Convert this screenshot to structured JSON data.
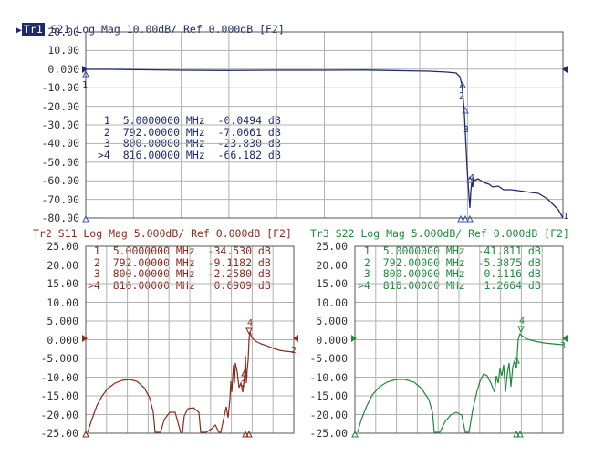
{
  "colors": {
    "trace1": "#1f2a6e",
    "trace2": "#8b2a1c",
    "trace3": "#1d8a3a",
    "grid": "#b0b0b0",
    "marker_blue": "#3a56b0"
  },
  "trace1": {
    "badge": "Tr1",
    "header": " S21 Log Mag 10.00dB/ Ref 0.000dB [F2]",
    "yticks": [
      "20.00",
      "10.00",
      "0.000",
      "-10.00",
      "-20.00",
      "-30.00",
      "-40.00",
      "-50.00",
      "-60.00",
      "-70.00",
      "-80.00"
    ],
    "markers": [
      {
        "n": "1",
        "freq": "5.0000000",
        "unit": "MHz",
        "val": "-0.0494",
        "db": "dB"
      },
      {
        "n": "2",
        "freq": "792.00000",
        "unit": "MHz",
        "val": "-7.0661",
        "db": "dB"
      },
      {
        "n": "3",
        "freq": "800.00000",
        "unit": "MHz",
        "val": "-23.830",
        "db": "dB"
      },
      {
        "n": ">4",
        "freq": "816.00000",
        "unit": "MHz",
        "val": "-66.182",
        "db": "dB"
      }
    ],
    "trace_marker_labels": [
      "1",
      "2",
      "3",
      "4",
      "1"
    ]
  },
  "trace2": {
    "header": "Tr2 S11 Log Mag 5.000dB/ Ref 0.000dB [F2]",
    "yticks": [
      "25.00",
      "20.00",
      "15.00",
      "10.00",
      "5.000",
      "0.000",
      "-5.000",
      "-10.00",
      "-15.00",
      "-20.00",
      "-25.00"
    ],
    "markers": [
      {
        "n": "1",
        "freq": "5.0000000",
        "unit": "MHz",
        "val": "-34.530",
        "db": "dB"
      },
      {
        "n": "2",
        "freq": "792.00000",
        "unit": "MHz",
        "val": "-9.1182",
        "db": "dB"
      },
      {
        "n": "3",
        "freq": "800.00000",
        "unit": "MHz",
        "val": "-2.2580",
        "db": "dB"
      },
      {
        "n": ">4",
        "freq": "816.00000",
        "unit": "MHz",
        "val": "0.6909",
        "db": "dB"
      }
    ],
    "trace_marker_labels": [
      "4",
      "2",
      "2"
    ]
  },
  "trace3": {
    "header": "Tr3 S22 Log Mag 5.000dB/ Ref 0.000dB [F2]",
    "yticks": [
      "25.00",
      "20.00",
      "15.00",
      "10.00",
      "5.000",
      "0.000",
      "-5.000",
      "-10.00",
      "-15.00",
      "-20.00",
      "-25.00"
    ],
    "markers": [
      {
        "n": "1",
        "freq": "5.0000000",
        "unit": "MHz",
        "val": "-41.811",
        "db": "dB"
      },
      {
        "n": "2",
        "freq": "792.00000",
        "unit": "MHz",
        "val": "-5.3875",
        "db": "dB"
      },
      {
        "n": "3",
        "freq": "800.00000",
        "unit": "MHz",
        "val": "0.1116",
        "db": "dB"
      },
      {
        "n": ">4",
        "freq": "816.00000",
        "unit": "MHz",
        "val": "1.2664",
        "db": "dB"
      }
    ],
    "trace_marker_labels": [
      "4",
      "3"
    ]
  }
}
